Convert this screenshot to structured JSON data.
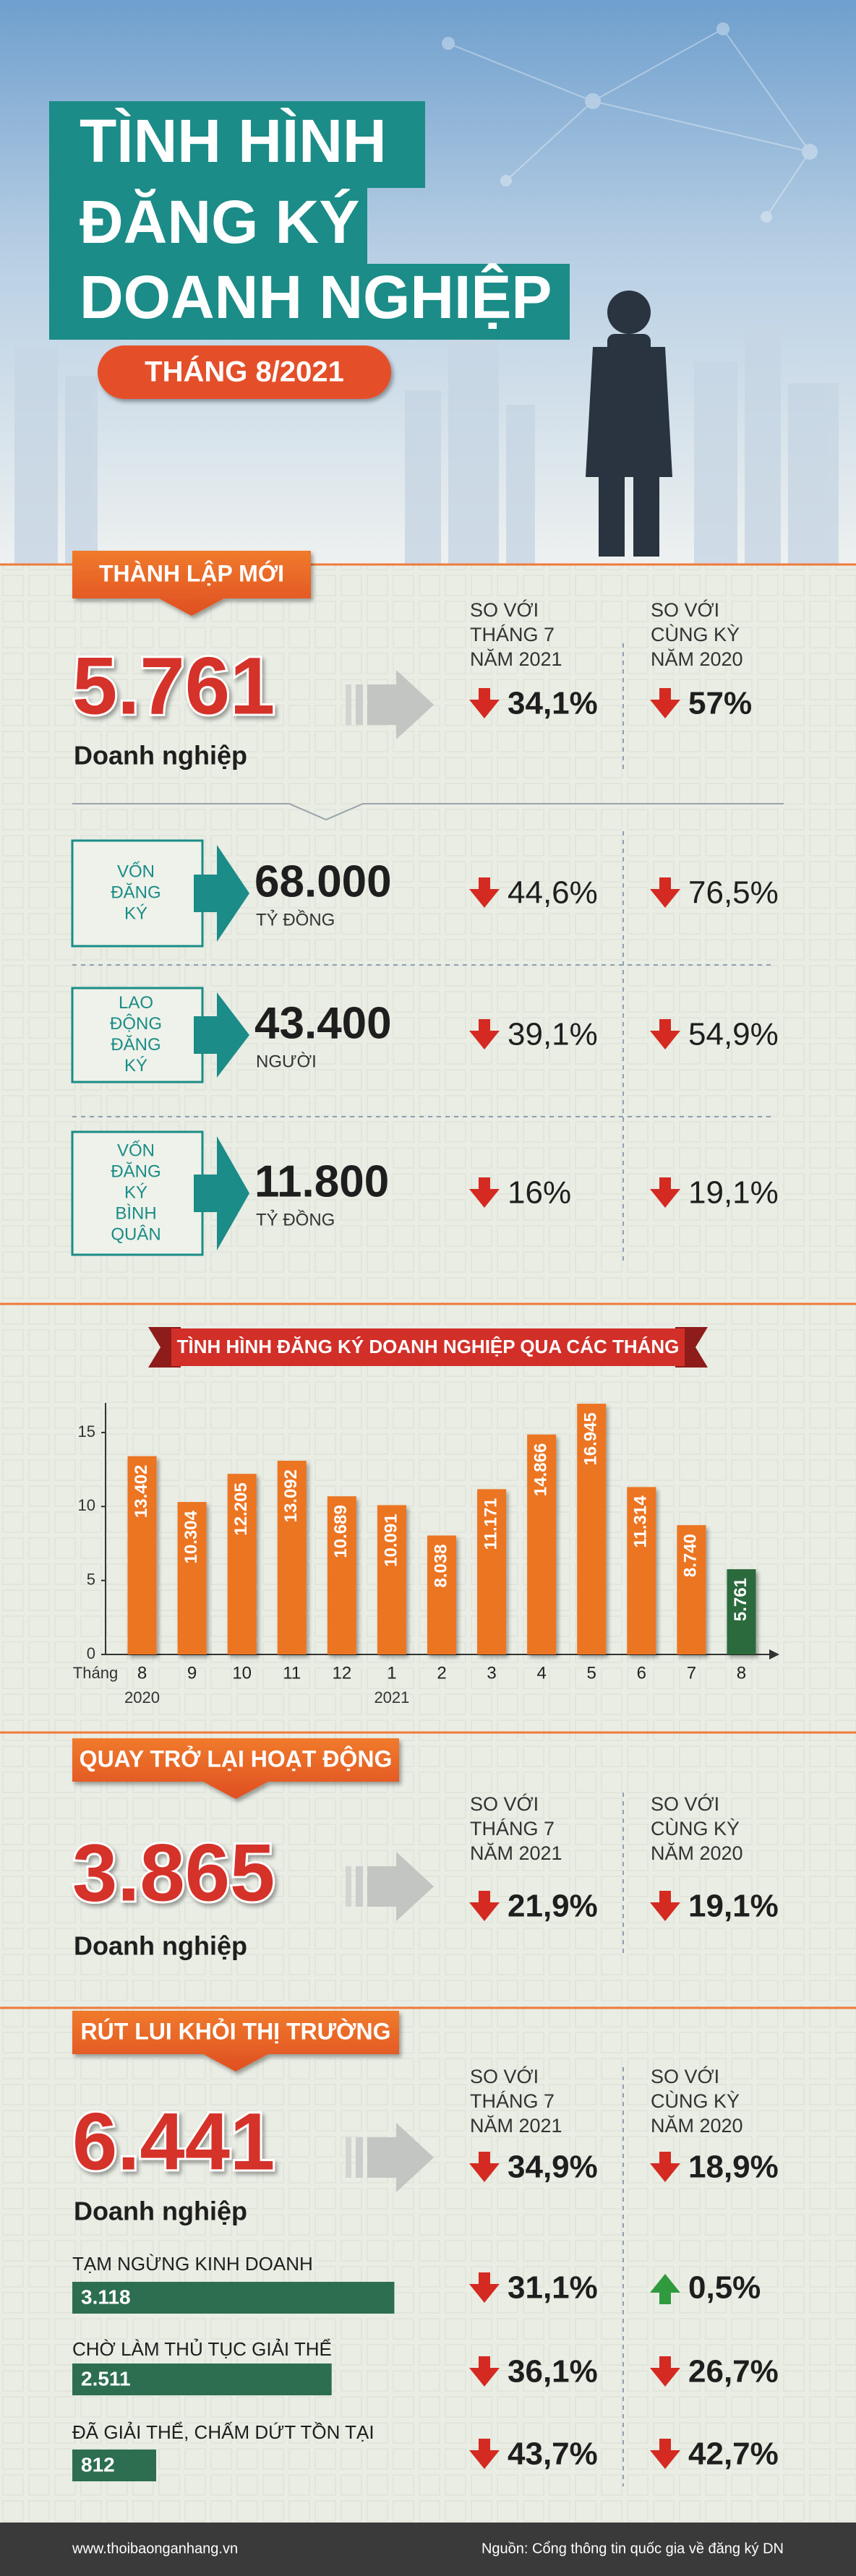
{
  "header": {
    "title": [
      "TÌNH HÌNH",
      "ĐĂNG KÝ",
      "DOANH NGHIỆP"
    ],
    "period": "THÁNG 8/2021"
  },
  "sections": [
    {
      "banner": "THÀNH LẬP MỚI",
      "value": "5.761",
      "unit": "Doanh nghiệp",
      "compare_headers": [
        [
          "SO VỚI",
          "THÁNG 7",
          "NĂM 2021"
        ],
        [
          "SO VỚI",
          "CÙNG KỲ",
          "NĂM 2020"
        ]
      ],
      "changes": [
        {
          "text": "34,1%",
          "direction": "down"
        },
        {
          "text": "57%",
          "direction": "down"
        }
      ],
      "details": [
        {
          "label": [
            "VỐN",
            "ĐĂNG",
            "KÝ"
          ],
          "value": "68.000",
          "unit": "TỶ ĐỒNG",
          "changes": [
            {
              "text": "44,6%",
              "direction": "down"
            },
            {
              "text": "76,5%",
              "direction": "down"
            }
          ]
        },
        {
          "label": [
            "LAO",
            "ĐỘNG",
            "ĐĂNG",
            "KÝ"
          ],
          "value": "43.400",
          "unit": "NGƯỜI",
          "changes": [
            {
              "text": "39,1%",
              "direction": "down"
            },
            {
              "text": "54,9%",
              "direction": "down"
            }
          ]
        },
        {
          "label": [
            "VỐN",
            "ĐĂNG",
            "KÝ",
            "BÌNH",
            "QUÂN"
          ],
          "value": "11.800",
          "unit": "TỶ ĐỒNG",
          "changes": [
            {
              "text": "16%",
              "direction": "down"
            },
            {
              "text": "19,1%",
              "direction": "down"
            }
          ]
        }
      ]
    },
    {
      "banner": "QUAY TRỞ LẠI HOẠT ĐỘNG",
      "value": "3.865",
      "unit": "Doanh nghiệp",
      "compare_headers": [
        [
          "SO VỚI",
          "THÁNG 7",
          "NĂM 2021"
        ],
        [
          "SO VỚI",
          "CÙNG KỲ",
          "NĂM 2020"
        ]
      ],
      "changes": [
        {
          "text": "21,9%",
          "direction": "down"
        },
        {
          "text": "19,1%",
          "direction": "down"
        }
      ]
    },
    {
      "banner": "RÚT LUI KHỎI THỊ TRƯỜNG",
      "value": "6.441",
      "unit": "Doanh nghiệp",
      "compare_headers": [
        [
          "SO VỚI",
          "THÁNG 7",
          "NĂM 2021"
        ],
        [
          "SO VỚI",
          "CÙNG KỲ",
          "NĂM 2020"
        ]
      ],
      "changes": [
        {
          "text": "34,9%",
          "direction": "down"
        },
        {
          "text": "18,9%",
          "direction": "down"
        }
      ],
      "breakdown": {
        "labels": [
          "TẠM NGỪNG KINH DOANH",
          "CHỜ LÀM THỦ TỤC GIẢI THỂ",
          "ĐÃ GIẢI THỂ, CHẤM DỨT TỒN TẠI"
        ],
        "values": [
          3118,
          2511,
          812
        ],
        "value_labels": [
          "3.118",
          "2.511",
          "812"
        ],
        "xlim": [
          0,
          3500
        ],
        "color": "#2d6e50",
        "changes": [
          [
            {
              "text": "31,1%",
              "direction": "down"
            },
            {
              "text": "0,5%",
              "direction": "up"
            }
          ],
          [
            {
              "text": "36,1%",
              "direction": "down"
            },
            {
              "text": "26,7%",
              "direction": "down"
            }
          ],
          [
            {
              "text": "43,7%",
              "direction": "down"
            },
            {
              "text": "42,7%",
              "direction": "down"
            }
          ]
        ]
      }
    }
  ],
  "chart_data": {
    "type": "bar",
    "title": "TÌNH HÌNH ĐĂNG KÝ DOANH NGHIỆP QUA CÁC THÁNG",
    "x_label": "Tháng",
    "category_groups": [
      {
        "label": "2020",
        "categories": [
          "8",
          "9",
          "10",
          "11",
          "12"
        ]
      },
      {
        "label": "2021",
        "categories": [
          "1",
          "2",
          "3",
          "4",
          "5",
          "6",
          "7",
          "8"
        ]
      }
    ],
    "values": [
      13.402,
      10.304,
      12.205,
      13.092,
      10.689,
      10.091,
      8.038,
      11.171,
      14.866,
      16.945,
      11.314,
      8.74,
      5.761
    ],
    "value_labels": [
      "13.402",
      "10.304",
      "12.205",
      "13.092",
      "10.689",
      "10.091",
      "8.038",
      "11.171",
      "14.866",
      "16.945",
      "11.314",
      "8.740",
      "5.761"
    ],
    "colors": [
      "#ec7524",
      "#ec7524",
      "#ec7524",
      "#ec7524",
      "#ec7524",
      "#ec7524",
      "#ec7524",
      "#ec7524",
      "#ec7524",
      "#ec7524",
      "#ec7524",
      "#ec7524",
      "#2c6b3e"
    ],
    "ylim": [
      0,
      17
    ],
    "yticks": [
      0,
      5,
      10,
      15
    ]
  },
  "footer": {
    "website": "www.thoibaonganhang.vn",
    "source": "Nguồn: Cổng thông tin quốc gia về đăng ký DN"
  }
}
